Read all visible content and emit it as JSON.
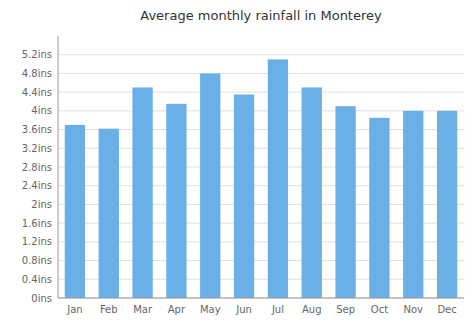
{
  "chart_data": {
    "type": "bar",
    "title": "Average monthly rainfall in Monterey",
    "categories": [
      "Jan",
      "Feb",
      "Mar",
      "Apr",
      "May",
      "Jun",
      "Jul",
      "Aug",
      "Sep",
      "Oct",
      "Nov",
      "Dec"
    ],
    "values": [
      3.7,
      3.62,
      4.5,
      4.15,
      4.8,
      4.35,
      5.1,
      4.5,
      4.1,
      3.85,
      4.0,
      4.0
    ],
    "color": "#6aafe6",
    "ylim": [
      0,
      5.6
    ],
    "yticks": [
      {
        "value": 0,
        "label": "0ins"
      },
      {
        "value": 0.4,
        "label": "0.4ins"
      },
      {
        "value": 0.8,
        "label": "0.8ins"
      },
      {
        "value": 1.2,
        "label": "1.2ins"
      },
      {
        "value": 1.6,
        "label": "1.6ins"
      },
      {
        "value": 2.0,
        "label": "2ins"
      },
      {
        "value": 2.4,
        "label": "2.4ins"
      },
      {
        "value": 2.8,
        "label": "2.8ins"
      },
      {
        "value": 3.2,
        "label": "3.2ins"
      },
      {
        "value": 3.6,
        "label": "3.6ins"
      },
      {
        "value": 4.0,
        "label": "4ins"
      },
      {
        "value": 4.4,
        "label": "4.4ins"
      },
      {
        "value": 4.8,
        "label": "4.8ins"
      },
      {
        "value": 5.2,
        "label": "5.2ins"
      }
    ],
    "grid": true
  }
}
